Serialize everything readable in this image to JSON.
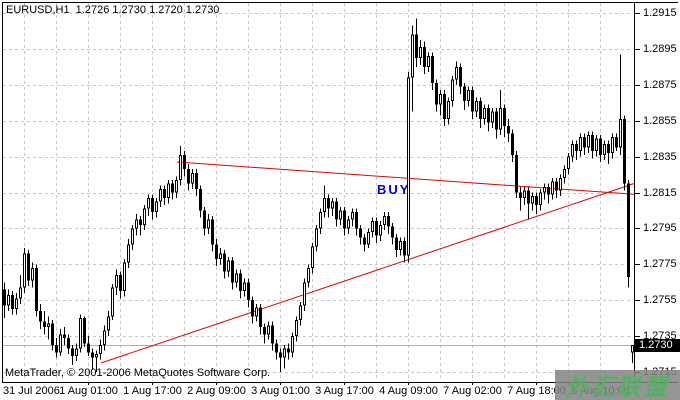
{
  "header": {
    "ohlc_line": "EURUSD,H1  1.2726 1.2730 1.2720 1.2730"
  },
  "chart_data": {
    "type": "candlestick",
    "symbol": "EURUSD",
    "timeframe": "H1",
    "ohlc_readout": {
      "open": "1.2726",
      "high": "1.2730",
      "low": "1.2720",
      "close": "1.2730"
    },
    "current_price": "1.2730",
    "price_axis": {
      "labels": [
        "1.2915",
        "1.2895",
        "1.2875",
        "1.2855",
        "1.2835",
        "1.2815",
        "1.2795",
        "1.2775",
        "1.2755",
        "1.2735",
        "1.2715"
      ],
      "max": 1.2915,
      "min": 1.2715,
      "step": 0.002
    },
    "time_axis": {
      "labels": [
        {
          "text": "31 Jul 2006",
          "bar": 0,
          "align": "left"
        },
        {
          "text": "1 Aug 01:00",
          "bar": 21
        },
        {
          "text": "1 Aug 17:00",
          "bar": 37
        },
        {
          "text": "2 Aug 09:00",
          "bar": 53
        },
        {
          "text": "3 Aug 01:00",
          "bar": 69
        },
        {
          "text": "3 Aug 17:00",
          "bar": 85
        },
        {
          "text": "4 Aug 09:00",
          "bar": 101
        },
        {
          "text": "7 Aug 02:00",
          "bar": 117
        },
        {
          "text": "7 Aug 18:00",
          "bar": 133
        },
        {
          "text": "8 Aug 10:00",
          "bar": 149
        }
      ]
    },
    "grid": true,
    "candles": [
      [
        1.2761,
        1.2765,
        1.2745,
        1.2752
      ],
      [
        1.2752,
        1.2761,
        1.2749,
        1.2758
      ],
      [
        1.2758,
        1.276,
        1.2747,
        1.275
      ],
      [
        1.275,
        1.2759,
        1.2747,
        1.2756
      ],
      [
        1.2756,
        1.2769,
        1.2753,
        1.2762
      ],
      [
        1.2762,
        1.2784,
        1.2759,
        1.2781
      ],
      [
        1.2781,
        1.2783,
        1.2763,
        1.2766
      ],
      [
        1.2766,
        1.2776,
        1.2762,
        1.2773
      ],
      [
        1.2773,
        1.2775,
        1.2746,
        1.2749
      ],
      [
        1.2749,
        1.2753,
        1.2739,
        1.2743
      ],
      [
        1.2743,
        1.2749,
        1.2736,
        1.274
      ],
      [
        1.274,
        1.2746,
        1.2733,
        1.2742
      ],
      [
        1.2742,
        1.2744,
        1.2727,
        1.273
      ],
      [
        1.273,
        1.2734,
        1.2723,
        1.2726
      ],
      [
        1.2726,
        1.2739,
        1.2724,
        1.2736
      ],
      [
        1.2736,
        1.274,
        1.273,
        1.2734
      ],
      [
        1.2734,
        1.2736,
        1.2725,
        1.2728
      ],
      [
        1.2728,
        1.273,
        1.2719,
        1.2724
      ],
      [
        1.2724,
        1.2731,
        1.2721,
        1.2728
      ],
      [
        1.2728,
        1.2747,
        1.2726,
        1.2745
      ],
      [
        1.2745,
        1.2746,
        1.2729,
        1.2731
      ],
      [
        1.2731,
        1.2735,
        1.2724,
        1.2726
      ],
      [
        1.2726,
        1.2728,
        1.2716,
        1.2723
      ],
      [
        1.2723,
        1.2727,
        1.2715,
        1.2725
      ],
      [
        1.2725,
        1.2733,
        1.2722,
        1.273
      ],
      [
        1.273,
        1.2741,
        1.2727,
        1.2738
      ],
      [
        1.2738,
        1.2749,
        1.2735,
        1.2746
      ],
      [
        1.2746,
        1.2764,
        1.2744,
        1.2762
      ],
      [
        1.2762,
        1.2772,
        1.2758,
        1.2769
      ],
      [
        1.2769,
        1.2771,
        1.2756,
        1.276
      ],
      [
        1.276,
        1.2778,
        1.2757,
        1.2776
      ],
      [
        1.2776,
        1.2789,
        1.2773,
        1.2786
      ],
      [
        1.2786,
        1.2797,
        1.2783,
        1.2795
      ],
      [
        1.2795,
        1.2803,
        1.2791,
        1.28
      ],
      [
        1.28,
        1.2802,
        1.2791,
        1.2797
      ],
      [
        1.2797,
        1.2808,
        1.2794,
        1.2806
      ],
      [
        1.2806,
        1.2814,
        1.2802,
        1.2812
      ],
      [
        1.2812,
        1.2814,
        1.28,
        1.2804
      ],
      [
        1.2804,
        1.2812,
        1.2801,
        1.281
      ],
      [
        1.281,
        1.2819,
        1.2807,
        1.2817
      ],
      [
        1.2817,
        1.2819,
        1.2808,
        1.2812
      ],
      [
        1.2812,
        1.2822,
        1.2809,
        1.282
      ],
      [
        1.282,
        1.2822,
        1.2811,
        1.2815
      ],
      [
        1.2815,
        1.2824,
        1.2812,
        1.2822
      ],
      [
        1.2822,
        1.2841,
        1.2819,
        1.2836
      ],
      [
        1.2836,
        1.2838,
        1.2824,
        1.2828
      ],
      [
        1.2828,
        1.2831,
        1.2816,
        1.282
      ],
      [
        1.282,
        1.2828,
        1.2817,
        1.2826
      ],
      [
        1.2826,
        1.2828,
        1.2813,
        1.2817
      ],
      [
        1.2817,
        1.2819,
        1.2801,
        1.2805
      ],
      [
        1.2805,
        1.2807,
        1.2791,
        1.2795
      ],
      [
        1.2795,
        1.2803,
        1.2792,
        1.28
      ],
      [
        1.28,
        1.2802,
        1.2782,
        1.2786
      ],
      [
        1.2786,
        1.2789,
        1.2774,
        1.2778
      ],
      [
        1.2778,
        1.2784,
        1.2775,
        1.2781
      ],
      [
        1.2781,
        1.2783,
        1.2767,
        1.2771
      ],
      [
        1.2771,
        1.2779,
        1.2768,
        1.2777
      ],
      [
        1.2777,
        1.2779,
        1.2761,
        1.2765
      ],
      [
        1.2765,
        1.2772,
        1.2762,
        1.277
      ],
      [
        1.277,
        1.2772,
        1.2756,
        1.276
      ],
      [
        1.276,
        1.2767,
        1.2757,
        1.2765
      ],
      [
        1.2765,
        1.2767,
        1.2751,
        1.2755
      ],
      [
        1.2755,
        1.2757,
        1.2742,
        1.2746
      ],
      [
        1.2746,
        1.2753,
        1.2743,
        1.2751
      ],
      [
        1.2751,
        1.2753,
        1.2736,
        1.274
      ],
      [
        1.274,
        1.2742,
        1.2731,
        1.2736
      ],
      [
        1.2736,
        1.2743,
        1.2733,
        1.2741
      ],
      [
        1.2741,
        1.2743,
        1.2727,
        1.2731
      ],
      [
        1.2731,
        1.2733,
        1.2722,
        1.2726
      ],
      [
        1.2726,
        1.2728,
        1.2715,
        1.2723
      ],
      [
        1.2723,
        1.273,
        1.2717,
        1.2728
      ],
      [
        1.2728,
        1.2731,
        1.2722,
        1.2726
      ],
      [
        1.2726,
        1.2737,
        1.2723,
        1.2735
      ],
      [
        1.2735,
        1.2746,
        1.2732,
        1.2744
      ],
      [
        1.2744,
        1.2754,
        1.2741,
        1.2752
      ],
      [
        1.2752,
        1.2767,
        1.2749,
        1.2765
      ],
      [
        1.2765,
        1.2775,
        1.2762,
        1.2773
      ],
      [
        1.2773,
        1.2787,
        1.277,
        1.2785
      ],
      [
        1.2785,
        1.2797,
        1.2782,
        1.2795
      ],
      [
        1.2795,
        1.2806,
        1.2792,
        1.2804
      ],
      [
        1.2804,
        1.2819,
        1.2801,
        1.2812
      ],
      [
        1.2812,
        1.2814,
        1.2801,
        1.2806
      ],
      [
        1.2806,
        1.2812,
        1.2802,
        1.281
      ],
      [
        1.281,
        1.2812,
        1.2796,
        1.28
      ],
      [
        1.28,
        1.2807,
        1.2797,
        1.2805
      ],
      [
        1.2805,
        1.2807,
        1.2791,
        1.2795
      ],
      [
        1.2795,
        1.2802,
        1.2792,
        1.28
      ],
      [
        1.28,
        1.2806,
        1.2796,
        1.2804
      ],
      [
        1.2804,
        1.2806,
        1.2791,
        1.2795
      ],
      [
        1.2795,
        1.2797,
        1.2786,
        1.279
      ],
      [
        1.279,
        1.2792,
        1.2782,
        1.2786
      ],
      [
        1.2786,
        1.2795,
        1.2784,
        1.2793
      ],
      [
        1.2793,
        1.2801,
        1.279,
        1.2799
      ],
      [
        1.2799,
        1.2801,
        1.2787,
        1.2791
      ],
      [
        1.2791,
        1.2799,
        1.2788,
        1.2797
      ],
      [
        1.2797,
        1.2804,
        1.2794,
        1.2802
      ],
      [
        1.2802,
        1.2804,
        1.2792,
        1.2796
      ],
      [
        1.2796,
        1.2798,
        1.2786,
        1.279
      ],
      [
        1.279,
        1.2792,
        1.2779,
        1.2783
      ],
      [
        1.2783,
        1.279,
        1.278,
        1.2788
      ],
      [
        1.2788,
        1.279,
        1.2776,
        1.278
      ],
      [
        1.278,
        1.2882,
        1.2776,
        1.2879
      ],
      [
        1.2879,
        1.2908,
        1.286,
        1.2903
      ],
      [
        1.2903,
        1.2912,
        1.2885,
        1.289
      ],
      [
        1.289,
        1.29,
        1.2886,
        1.2896
      ],
      [
        1.2896,
        1.2899,
        1.2881,
        1.2885
      ],
      [
        1.2885,
        1.2893,
        1.2882,
        1.2891
      ],
      [
        1.2891,
        1.2893,
        1.2872,
        1.2876
      ],
      [
        1.2876,
        1.2878,
        1.286,
        1.2864
      ],
      [
        1.2864,
        1.2872,
        1.2858,
        1.287
      ],
      [
        1.287,
        1.2872,
        1.2852,
        1.2856
      ],
      [
        1.2856,
        1.2868,
        1.2853,
        1.2866
      ],
      [
        1.2866,
        1.288,
        1.2863,
        1.2878
      ],
      [
        1.2878,
        1.2888,
        1.2875,
        1.2885
      ],
      [
        1.2885,
        1.2887,
        1.287,
        1.2874
      ],
      [
        1.2874,
        1.2876,
        1.2861,
        1.2866
      ],
      [
        1.2866,
        1.2874,
        1.2863,
        1.2872
      ],
      [
        1.2872,
        1.2874,
        1.2856,
        1.286
      ],
      [
        1.286,
        1.2868,
        1.2857,
        1.2866
      ],
      [
        1.2866,
        1.2868,
        1.2851,
        1.2856
      ],
      [
        1.2856,
        1.2864,
        1.2853,
        1.2862
      ],
      [
        1.2862,
        1.2864,
        1.2849,
        1.2854
      ],
      [
        1.2854,
        1.2862,
        1.2851,
        1.286
      ],
      [
        1.286,
        1.2862,
        1.2845,
        1.285
      ],
      [
        1.285,
        1.2872,
        1.2847,
        1.2862
      ],
      [
        1.2862,
        1.2864,
        1.2846,
        1.2852
      ],
      [
        1.2852,
        1.2856,
        1.2843,
        1.2848
      ],
      [
        1.2848,
        1.285,
        1.2832,
        1.2836
      ],
      [
        1.2836,
        1.2838,
        1.2812,
        1.2815
      ],
      [
        1.2815,
        1.2818,
        1.2805,
        1.2812
      ],
      [
        1.2812,
        1.2818,
        1.2808,
        1.2816
      ],
      [
        1.2816,
        1.2818,
        1.28,
        1.2809
      ],
      [
        1.2809,
        1.2815,
        1.2805,
        1.2813
      ],
      [
        1.2813,
        1.2815,
        1.2803,
        1.2808
      ],
      [
        1.2808,
        1.2817,
        1.2805,
        1.2815
      ],
      [
        1.2815,
        1.282,
        1.2811,
        1.2818
      ],
      [
        1.2818,
        1.282,
        1.2809,
        1.2814
      ],
      [
        1.2814,
        1.2823,
        1.2811,
        1.2821
      ],
      [
        1.2821,
        1.2823,
        1.2812,
        1.2816
      ],
      [
        1.2816,
        1.2825,
        1.2813,
        1.2823
      ],
      [
        1.2823,
        1.283,
        1.282,
        1.2828
      ],
      [
        1.2828,
        1.2837,
        1.2825,
        1.2835
      ],
      [
        1.2835,
        1.2844,
        1.2832,
        1.2842
      ],
      [
        1.2842,
        1.2844,
        1.2833,
        1.2838
      ],
      [
        1.2838,
        1.2848,
        1.2835,
        1.2846
      ],
      [
        1.2846,
        1.2848,
        1.2836,
        1.284
      ],
      [
        1.284,
        1.2849,
        1.2837,
        1.2847
      ],
      [
        1.2847,
        1.2849,
        1.2834,
        1.2838
      ],
      [
        1.2838,
        1.2847,
        1.2835,
        1.2845
      ],
      [
        1.2845,
        1.2847,
        1.2832,
        1.2836
      ],
      [
        1.2836,
        1.2844,
        1.2833,
        1.2842
      ],
      [
        1.2842,
        1.2844,
        1.2831,
        1.2837
      ],
      [
        1.2837,
        1.2848,
        1.2834,
        1.2846
      ],
      [
        1.2846,
        1.2848,
        1.2838,
        1.284
      ],
      [
        1.284,
        1.2892,
        1.2836,
        1.2856
      ],
      [
        1.2856,
        1.2858,
        1.2816,
        1.282
      ],
      [
        1.282,
        1.2822,
        1.2762,
        1.2768
      ],
      [
        1.2726,
        1.273,
        1.272,
        1.273
      ]
    ],
    "trend_lines": [
      {
        "name": "descending-trendline",
        "from": {
          "bar": 43.5,
          "price": 1.2832
        },
        "to": {
          "bar": 157.8,
          "price": 1.2814
        }
      },
      {
        "name": "ascending-trendline",
        "from": {
          "bar": 24.5,
          "price": 1.272
        },
        "to": {
          "bar": 157.8,
          "price": 1.282
        }
      }
    ],
    "annotations": {
      "buy_label": "BUY"
    }
  },
  "footer": {
    "copyright": "MetaTrader, © 2001-2006 MetaQuotes Software Corp."
  },
  "watermark": {
    "text": "外汇联盟"
  },
  "colors": {
    "trend": "#e60000",
    "buy_text": "#0000d8",
    "grid": "#c8c8c8",
    "bull": "#ffffff",
    "bear": "#000000",
    "outline": "#000000",
    "price_line": "#b0b0b0",
    "axis_text": "#000000",
    "price_box_bg": "#000000",
    "price_box_text": "#ffffff",
    "watermark_text": "#55b062",
    "watermark_bg": "#828282"
  }
}
